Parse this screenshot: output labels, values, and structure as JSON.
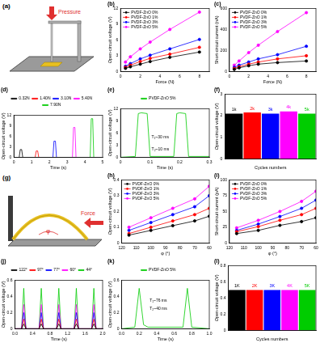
{
  "chart_data": [
    {
      "type": "line",
      "title": "(b)",
      "x_label": "Force (N)",
      "y_label": "Open-circuit voltage (V)",
      "x": [
        0.5,
        1,
        2,
        3,
        5,
        8
      ],
      "xlim": [
        0,
        9
      ],
      "xticks": [
        0,
        2,
        4,
        6,
        8
      ],
      "ylim": [
        0,
        12
      ],
      "yticks": [
        0,
        3,
        6,
        9,
        12
      ],
      "grid": false,
      "legend": "upper left",
      "marker": "circle",
      "series": [
        {
          "name": "PVDF-ZnO 0%",
          "color": "#000000",
          "values": [
            0.6,
            0.9,
            1.4,
            1.9,
            2.7,
            3.7
          ]
        },
        {
          "name": "PVDF-ZnO 1%",
          "color": "#ff0000",
          "values": [
            0.8,
            1.2,
            1.9,
            2.5,
            3.3,
            4.6
          ]
        },
        {
          "name": "PVDF-ZnO 3%",
          "color": "#0000ff",
          "values": [
            1.0,
            1.5,
            2.4,
            3.1,
            4.3,
            6.1
          ]
        },
        {
          "name": "PVDF-ZnO 5%",
          "color": "#ff00ff",
          "values": [
            1.8,
            2.8,
            4.3,
            5.6,
            8.0,
            11.3
          ]
        }
      ]
    },
    {
      "type": "line",
      "title": "(c)",
      "x_label": "Force (N)",
      "y_label": "Short-circuit current (nA)",
      "x": [
        0.5,
        1,
        2,
        3,
        5,
        8
      ],
      "xlim": [
        0,
        9
      ],
      "xticks": [
        0,
        2,
        4,
        6,
        8
      ],
      "ylim": [
        0,
        600
      ],
      "yticks": [
        0,
        200,
        400,
        600
      ],
      "grid": false,
      "legend": "upper left",
      "marker": "circle",
      "series": [
        {
          "name": "PVDF-ZnO 0%",
          "color": "#000000",
          "values": [
            20,
            35,
            55,
            70,
            85,
            100
          ]
        },
        {
          "name": "PVDF-ZnO 1%",
          "color": "#ff0000",
          "values": [
            30,
            45,
            70,
            90,
            120,
            150
          ]
        },
        {
          "name": "PVDF-ZnO 3%",
          "color": "#0000ff",
          "values": [
            40,
            60,
            90,
            120,
            160,
            240
          ]
        },
        {
          "name": "PVDF-ZnO 5%",
          "color": "#ff00ff",
          "values": [
            60,
            100,
            180,
            250,
            380,
            560
          ]
        }
      ]
    },
    {
      "type": "line",
      "title": "(d)",
      "x_label": "Time (s)",
      "y_label": "Open-circuit voltage (V)",
      "xlim": [
        0,
        5
      ],
      "xticks": [
        0,
        1,
        2,
        3,
        4,
        5
      ],
      "ylim": [
        0,
        12
      ],
      "yticks": [
        0,
        3,
        6,
        9,
        12
      ],
      "grid": false,
      "legend": "top",
      "marker": "none",
      "series": [
        {
          "name": "0.32N",
          "color": "#000000",
          "x": [
            0.3,
            0.36,
            0.44,
            0.5
          ],
          "values": [
            0,
            2.2,
            2.2,
            0
          ]
        },
        {
          "name": "1.40N",
          "color": "#ff0000",
          "x": [
            1.2,
            1.26,
            1.34,
            1.4
          ],
          "values": [
            0,
            1.8,
            1.8,
            0
          ]
        },
        {
          "name": "3.10N",
          "color": "#0000ff",
          "x": [
            2.2,
            2.26,
            2.34,
            2.4
          ],
          "values": [
            0,
            4.6,
            4.6,
            0
          ]
        },
        {
          "name": "5.40N",
          "color": "#ff00ff",
          "x": [
            3.3,
            3.36,
            3.44,
            3.5
          ],
          "values": [
            0,
            8.5,
            8.5,
            0
          ]
        },
        {
          "name": "7.90N",
          "color": "#00cc00",
          "x": [
            4.3,
            4.36,
            4.44,
            4.5
          ],
          "values": [
            0,
            11,
            11,
            0
          ]
        }
      ]
    },
    {
      "type": "line",
      "title": "(e)",
      "x_label": "Time (s)",
      "y_label": "Open-circuit voltage (V)",
      "x": [
        0,
        0.05,
        0.06,
        0.07,
        0.09,
        0.1,
        0.18,
        0.19,
        0.2,
        0.22,
        0.23,
        0.3
      ],
      "xlim": [
        0,
        0.3
      ],
      "xticks": [
        0,
        0.1,
        0.2,
        0.3
      ],
      "ylim": [
        0,
        12
      ],
      "yticks": [
        0,
        3,
        6,
        9,
        12
      ],
      "grid": false,
      "legend": "top",
      "marker": "none",
      "series": [
        {
          "name": "PVDF-ZnO 5%",
          "color": "#00cc00",
          "values": [
            0,
            0.2,
            10.8,
            11,
            10.8,
            0.2,
            0.2,
            10.8,
            11,
            10.8,
            0.2,
            0.2
          ]
        }
      ],
      "annotations": [
        {
          "text": "T₁~30 ms",
          "x": 0.105,
          "y": 5
        },
        {
          "text": "T₂~10 ms",
          "x": 0.105,
          "y": 2
        }
      ]
    },
    {
      "type": "bar",
      "title": "(f)",
      "x_label": "Cycles numbers",
      "y_label": "Open-circuit voltage (V)",
      "categories": [
        "1k",
        "2k",
        "3k",
        "4k",
        "5k"
      ],
      "values": [
        2.1,
        2.15,
        2.1,
        2.2,
        2.1
      ],
      "colors": [
        "#000000",
        "#ff0000",
        "#0000ff",
        "#ff00ff",
        "#00cc00"
      ],
      "ylim": [
        0,
        3
      ],
      "yticks": [
        0,
        1,
        2,
        3
      ],
      "grid": false,
      "tick_labels": "y"
    },
    {
      "type": "line",
      "title": "(h)",
      "x_label": "φ (°)",
      "y_label": "Open-circuit voltage (V)",
      "x": [
        115,
        100,
        85,
        70,
        60
      ],
      "xlim": [
        120,
        60
      ],
      "xticks": [
        120,
        110,
        100,
        90,
        80,
        70,
        60
      ],
      "ylim": [
        0,
        0.4
      ],
      "yticks": [
        0,
        0.1,
        0.2,
        0.3,
        0.4
      ],
      "grid": false,
      "legend": "upper left",
      "marker": "circle",
      "series": [
        {
          "name": "PVDF-ZnO 0%",
          "color": "#000000",
          "values": [
            0.05,
            0.08,
            0.11,
            0.14,
            0.17
          ]
        },
        {
          "name": "PVDF-ZnO 1%",
          "color": "#ff0000",
          "values": [
            0.06,
            0.1,
            0.14,
            0.18,
            0.22
          ]
        },
        {
          "name": "PVDF-ZnO 3%",
          "color": "#0000ff",
          "values": [
            0.08,
            0.13,
            0.18,
            0.23,
            0.3
          ]
        },
        {
          "name": "PVDF-ZnO 5%",
          "color": "#ff00ff",
          "values": [
            0.1,
            0.16,
            0.22,
            0.28,
            0.36
          ]
        }
      ]
    },
    {
      "type": "line",
      "title": "(i)",
      "x_label": "φ (°)",
      "y_label": "Short-circuit current (pA)",
      "x": [
        115,
        100,
        85,
        70,
        60
      ],
      "xlim": [
        120,
        60
      ],
      "xticks": [
        120,
        110,
        100,
        90,
        80,
        70,
        60
      ],
      "ylim": [
        0,
        100
      ],
      "yticks": [
        0,
        25,
        50,
        75,
        100
      ],
      "grid": false,
      "legend": "upper left",
      "marker": "circle",
      "series": [
        {
          "name": "PVDF-ZnO 0%",
          "color": "#000000",
          "values": [
            15,
            20,
            28,
            34,
            40
          ]
        },
        {
          "name": "PVDF-ZnO 1%",
          "color": "#ff0000",
          "values": [
            18,
            26,
            36,
            45,
            55
          ]
        },
        {
          "name": "PVDF-ZnO 3%",
          "color": "#0000ff",
          "values": [
            20,
            30,
            42,
            55,
            68
          ]
        },
        {
          "name": "PVDF-ZnO 5%",
          "color": "#ff00ff",
          "values": [
            24,
            36,
            50,
            66,
            82
          ]
        }
      ]
    },
    {
      "type": "line",
      "title": "(j)",
      "x_label": "Time (s)",
      "y_label": "Open-circuit voltage (V)",
      "x": [
        0,
        0.15,
        0.2,
        0.25,
        0.55,
        0.6,
        0.65,
        0.95,
        1.0,
        1.05,
        1.35,
        1.4,
        1.45,
        1.75,
        1.8,
        1.85,
        2.0
      ],
      "xlim": [
        0,
        2
      ],
      "xticks": [
        {
          "value": 0,
          "label": "0.0"
        },
        0.4,
        0.8,
        1.2,
        1.6,
        {
          "value": 2,
          "label": "2.0"
        }
      ],
      "ylim": [
        0,
        0.6
      ],
      "yticks": [
        0,
        0.2,
        0.4,
        0.6
      ],
      "grid": false,
      "legend": "top",
      "marker": "none",
      "series": [
        {
          "name": "122°",
          "color": "#000000",
          "values": [
            0,
            0,
            0.06,
            0,
            0,
            0.06,
            0,
            0,
            0.06,
            0,
            0,
            0.06,
            0,
            0,
            0.06,
            0,
            0
          ]
        },
        {
          "name": "97°",
          "color": "#ff0000",
          "values": [
            0,
            0,
            0.12,
            0,
            0,
            0.12,
            0,
            0,
            0.12,
            0,
            0,
            0.12,
            0,
            0,
            0.12,
            0,
            0
          ]
        },
        {
          "name": "77°",
          "color": "#0000ff",
          "values": [
            0,
            0,
            0.2,
            0,
            0,
            0.2,
            0,
            0,
            0.2,
            0,
            0,
            0.2,
            0,
            0,
            0.2,
            0,
            0
          ]
        },
        {
          "name": "60°",
          "color": "#ff00ff",
          "values": [
            0,
            0,
            0.3,
            0,
            0,
            0.3,
            0,
            0,
            0.3,
            0,
            0,
            0.3,
            0,
            0,
            0.3,
            0,
            0
          ]
        },
        {
          "name": "44°",
          "color": "#00cc00",
          "values": [
            0,
            0,
            0.5,
            0,
            0,
            0.5,
            0,
            0,
            0.5,
            0,
            0,
            0.5,
            0,
            0,
            0.5,
            0,
            0
          ]
        }
      ]
    },
    {
      "type": "line",
      "title": "(k)",
      "x_label": "Time (s)",
      "y_label": "Open-circuit voltage (V)",
      "x": [
        0,
        0.15,
        0.2,
        0.25,
        0.3,
        0.7,
        0.75,
        0.8,
        1.0
      ],
      "xlim": [
        0,
        1
      ],
      "xticks": [
        {
          "value": 0,
          "label": "0.0"
        },
        0.2,
        0.4,
        0.6,
        0.8,
        {
          "value": 1,
          "label": "1.0"
        }
      ],
      "ylim": [
        0,
        0.6
      ],
      "yticks": [
        0,
        0.2,
        0.4,
        0.6
      ],
      "grid": false,
      "legend": "top",
      "marker": "none",
      "series": [
        {
          "name": "PVDF-ZnO 5%",
          "color": "#00cc00",
          "values": [
            0,
            0.02,
            0.5,
            0.05,
            0.02,
            0.02,
            0.5,
            0.02,
            0
          ]
        }
      ],
      "annotations": [
        {
          "text": "T₁~76 ms",
          "x": 0.32,
          "y": 0.35
        },
        {
          "text": "T₂~40 ms",
          "x": 0.32,
          "y": 0.25
        }
      ]
    },
    {
      "type": "bar",
      "title": "(l)",
      "x_label": "Cycles numbers",
      "y_label": "Open-circuit voltage (V)",
      "categories": [
        "1K",
        "2K",
        "3K",
        "4K",
        "5K"
      ],
      "values": [
        0.5,
        0.5,
        0.5,
        0.5,
        0.5
      ],
      "colors": [
        "#000000",
        "#ff0000",
        "#0000ff",
        "#ff00ff",
        "#00cc00"
      ],
      "ylim": [
        0,
        0.8
      ],
      "yticks": [
        0,
        0.2,
        0.4,
        0.6,
        0.8
      ],
      "grid": false,
      "tick_labels": "y"
    }
  ],
  "diagrams": [
    {
      "label": "(a)",
      "arrow_label": "Pressure"
    },
    {
      "label": "(g)",
      "arrow_label": "Force",
      "angle_label": "φ"
    }
  ]
}
